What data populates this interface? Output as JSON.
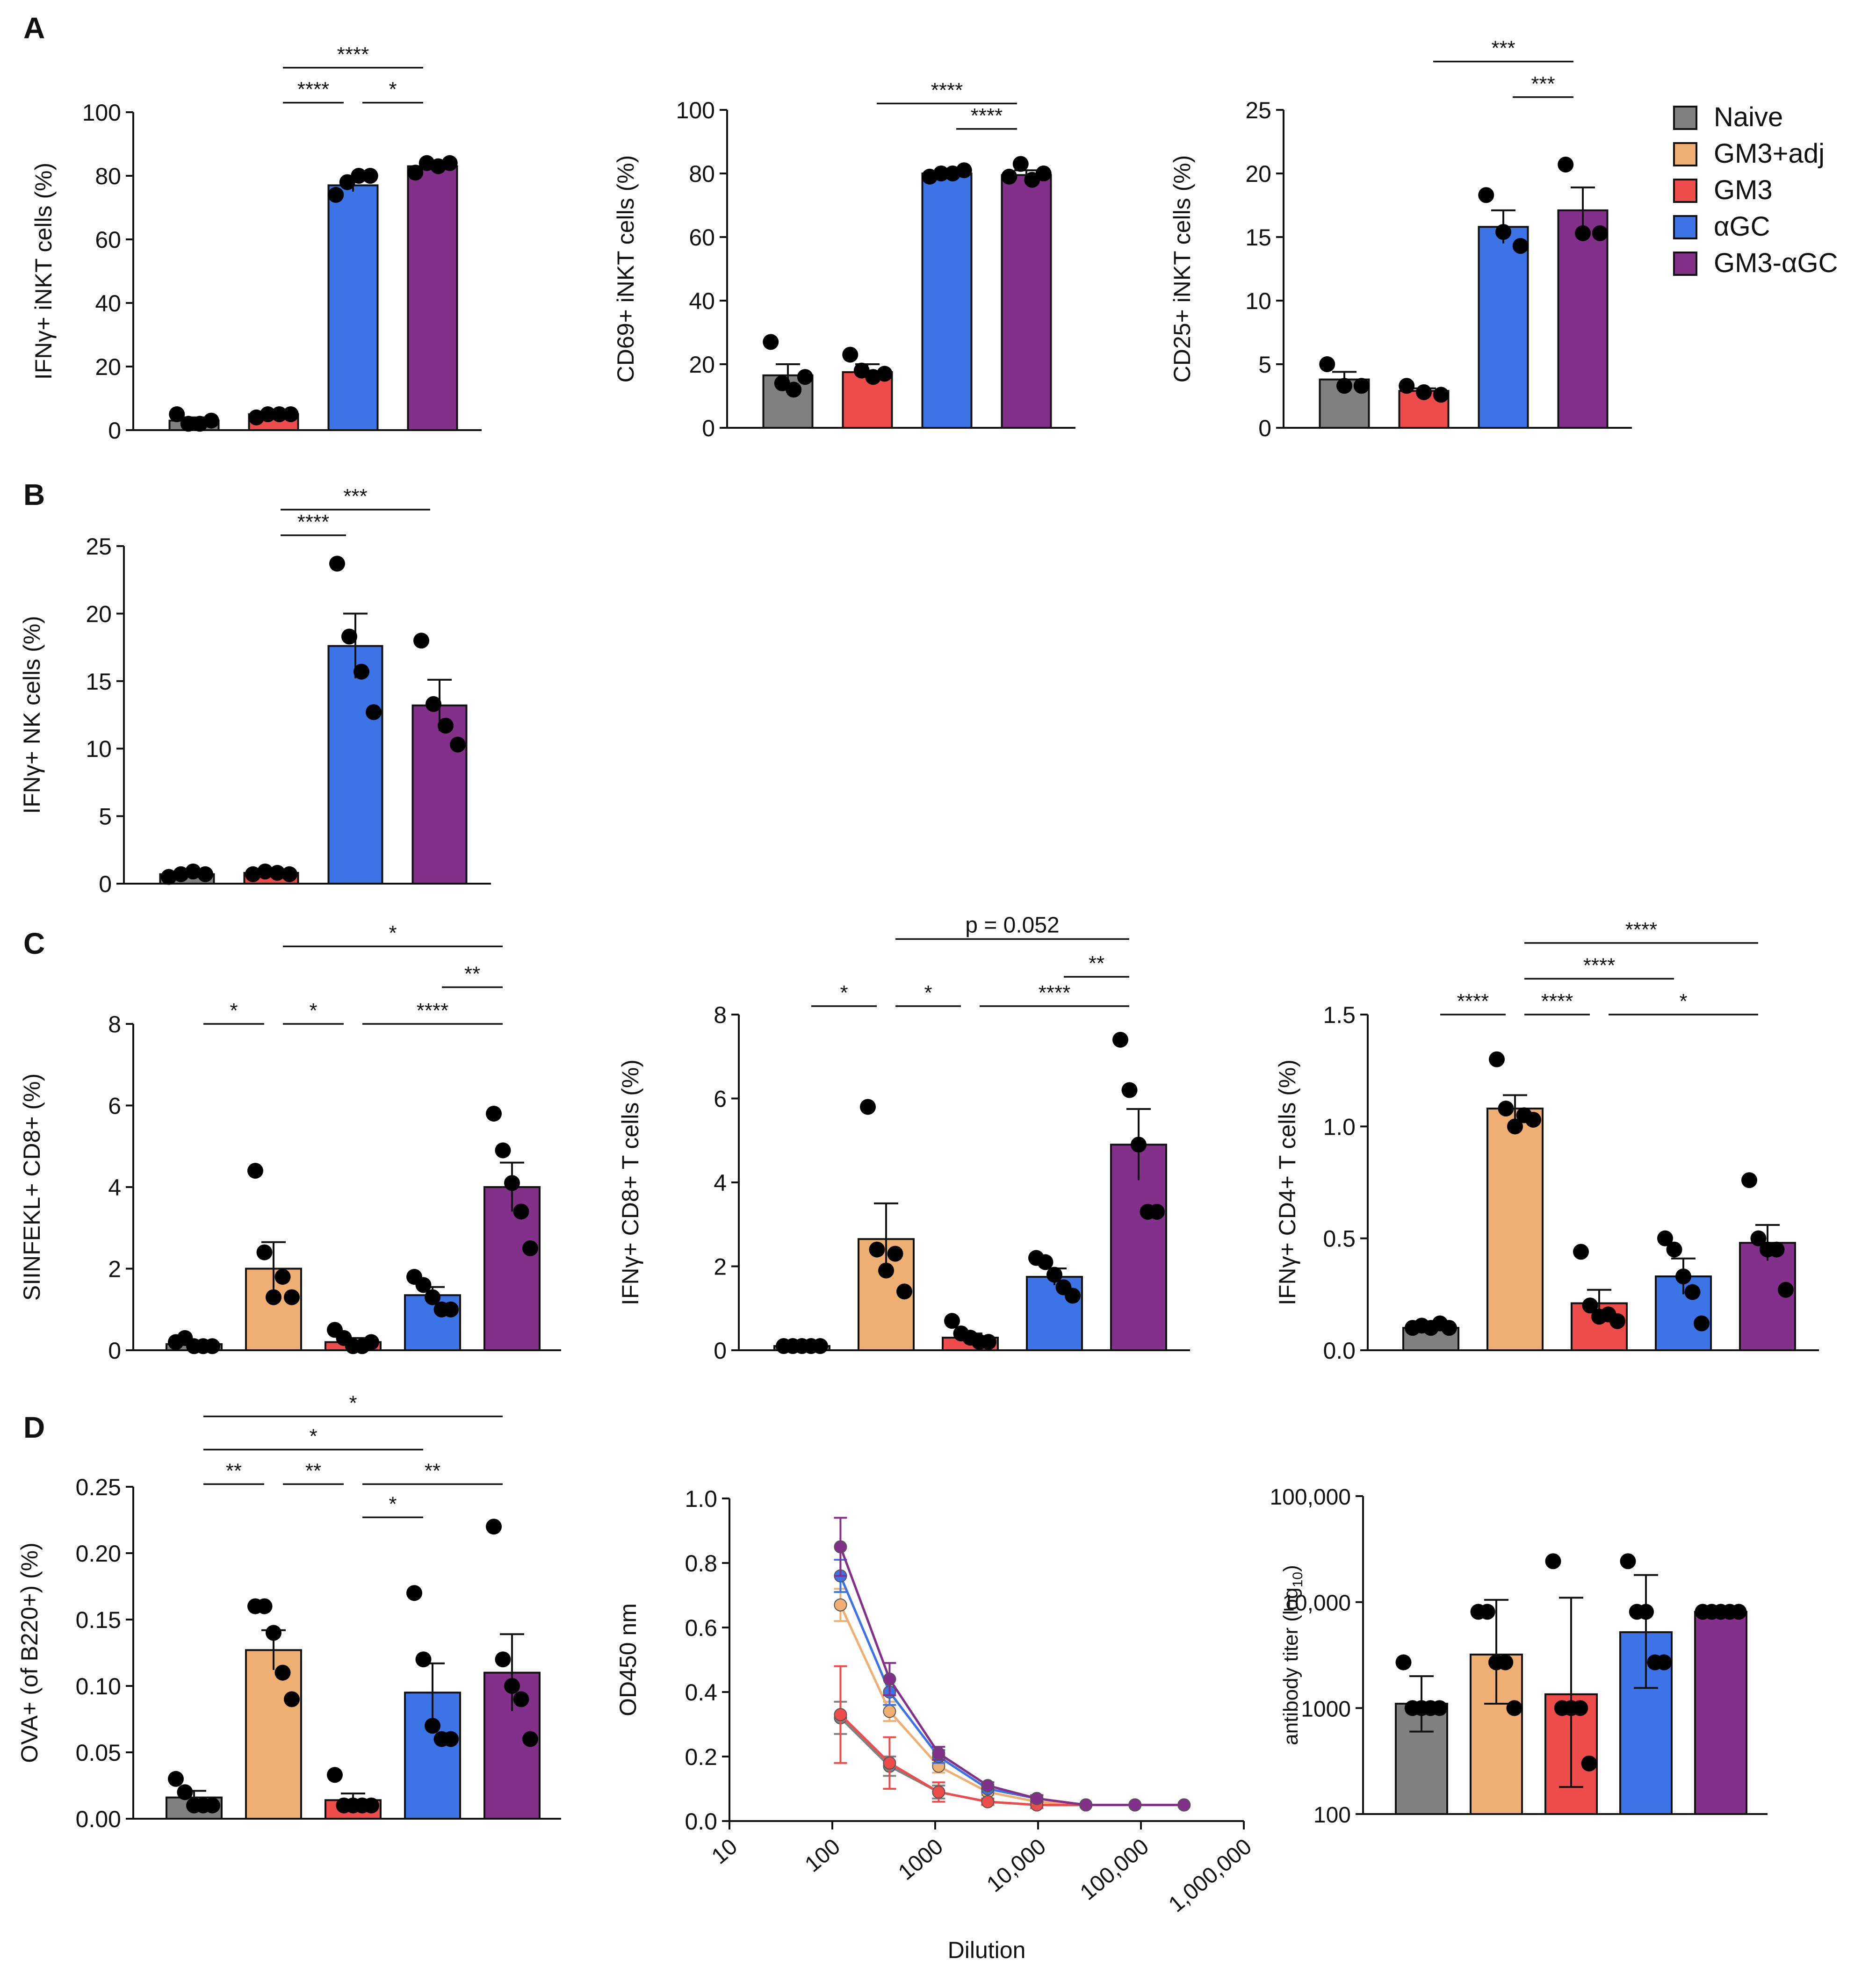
{
  "figure": {
    "panel_labels": [
      "A",
      "B",
      "C",
      "D"
    ],
    "colors": {
      "Naive": "#808080",
      "GM3+adj": "#EFAF72",
      "GM3": "#EE4B4B",
      "aGC": "#3C73E6",
      "GM3-aGC": "#83308A"
    },
    "legend": {
      "position": "top-right",
      "entries": [
        {
          "label": "Naive",
          "key": "Naive"
        },
        {
          "label": "GM3+adj",
          "key": "GM3+adj"
        },
        {
          "label": "GM3",
          "key": "GM3"
        },
        {
          "label": "αGC",
          "key": "aGC"
        },
        {
          "label": "GM3-αGC",
          "key": "GM3-aGC"
        }
      ]
    }
  },
  "chart_data": [
    {
      "id": "A1",
      "type": "bar",
      "panel": "A",
      "ylabel": "IFNγ+ iNKT cells (%)",
      "ylim": [
        0,
        100
      ],
      "yticks": [
        0,
        20,
        40,
        60,
        80,
        100
      ],
      "groups": [
        "Naive",
        "GM3",
        "aGC",
        "GM3-aGC"
      ],
      "values": [
        3,
        5,
        77,
        83
      ],
      "sem": [
        1,
        0.4,
        2,
        1.3
      ],
      "points": [
        [
          5,
          2,
          2,
          3
        ],
        [
          4,
          5,
          5,
          5
        ],
        [
          74,
          78,
          80,
          80
        ],
        [
          81,
          84,
          83,
          84
        ]
      ],
      "significance": [
        {
          "from": 1,
          "to": 2,
          "label": "****",
          "y": 103
        },
        {
          "from": 2,
          "to": 3,
          "label": "*",
          "y": 103
        },
        {
          "from": 1,
          "to": 3,
          "label": "****",
          "y": 114
        }
      ]
    },
    {
      "id": "A2",
      "type": "bar",
      "panel": "A",
      "ylabel": "CD69+ iNKT cells (%)",
      "ylim": [
        0,
        100
      ],
      "yticks": [
        0,
        20,
        40,
        60,
        80,
        100
      ],
      "groups": [
        "Naive",
        "GM3",
        "aGC",
        "GM3-aGC"
      ],
      "values": [
        16.5,
        17.5,
        80,
        79.5
      ],
      "sem": [
        3.5,
        2.5,
        0.5,
        1.5
      ],
      "points": [
        [
          27,
          14,
          12,
          16
        ],
        [
          23,
          18,
          16,
          17
        ],
        [
          79,
          80,
          80,
          81
        ],
        [
          79,
          83,
          78,
          80
        ]
      ],
      "significance": [
        {
          "from": 2,
          "to": 3,
          "label": "****",
          "y": 94
        },
        {
          "from": 1,
          "to": 3,
          "label": "****",
          "y": 102
        }
      ]
    },
    {
      "id": "A3",
      "type": "bar",
      "panel": "A",
      "ylabel": "CD25+ iNKT cells (%)",
      "ylim": [
        0,
        25
      ],
      "yticks": [
        0,
        5,
        10,
        15,
        20,
        25
      ],
      "groups": [
        "Naive",
        "GM3",
        "aGC",
        "GM3-aGC"
      ],
      "values": [
        3.8,
        2.9,
        15.8,
        17.1
      ],
      "sem": [
        0.6,
        0.2,
        1.3,
        1.8
      ],
      "points": [
        [
          5,
          3.3,
          3.3
        ],
        [
          3.3,
          2.8,
          2.6
        ],
        [
          18.3,
          15.4,
          14.3
        ],
        [
          20.7,
          15.3,
          15.3
        ]
      ],
      "significance": [
        {
          "from": 2,
          "to": 3,
          "label": "***",
          "y": 26
        },
        {
          "from": 1,
          "to": 3,
          "label": "***",
          "y": 28.8
        }
      ]
    },
    {
      "id": "B1",
      "type": "bar",
      "panel": "B",
      "ylabel": "IFNγ+ NK cells (%)",
      "ylim": [
        0,
        25
      ],
      "yticks": [
        0,
        5,
        10,
        15,
        20,
        25
      ],
      "groups": [
        "Naive",
        "GM3",
        "aGC",
        "GM3-aGC"
      ],
      "values": [
        0.7,
        0.8,
        17.6,
        13.2
      ],
      "sem": [
        0.15,
        0.1,
        2.4,
        1.9
      ],
      "points": [
        [
          0.5,
          0.7,
          0.9,
          0.7
        ],
        [
          0.7,
          0.9,
          0.8,
          0.7
        ],
        [
          23.7,
          18.3,
          15.7,
          12.7
        ],
        [
          18,
          13.3,
          11.7,
          10.3
        ]
      ],
      "significance": [
        {
          "from": 1,
          "to": 2,
          "label": "****",
          "y": 25.8
        },
        {
          "from": 1,
          "to": 3,
          "label": "***",
          "y": 27.7
        }
      ]
    },
    {
      "id": "C1",
      "type": "bar",
      "panel": "C",
      "ylabel": "SIINFEKL+ CD8+ (%)",
      "ylim": [
        0,
        8
      ],
      "yticks": [
        0,
        2,
        4,
        6,
        8
      ],
      "groups": [
        "Naive",
        "GM3+adj",
        "GM3",
        "aGC",
        "GM3-aGC"
      ],
      "values": [
        0.15,
        2.0,
        0.2,
        1.35,
        4.0
      ],
      "sem": [
        0.05,
        0.65,
        0.1,
        0.2,
        0.6
      ],
      "points": [
        [
          0.2,
          0.3,
          0.1,
          0.1,
          0.1
        ],
        [
          4.4,
          2.4,
          1.3,
          1.8,
          1.3
        ],
        [
          0.5,
          0.3,
          0.1,
          0.1,
          0.2
        ],
        [
          1.8,
          1.6,
          1.3,
          1.0,
          1.0
        ],
        [
          5.8,
          4.9,
          4.1,
          3.4,
          2.5
        ]
      ],
      "significance": [
        {
          "from": 0,
          "to": 1,
          "label": "*",
          "y": 8.0
        },
        {
          "from": 1,
          "to": 2,
          "label": "*",
          "y": 8.0
        },
        {
          "from": 2,
          "to": 4,
          "label": "****",
          "y": 8.0
        },
        {
          "from": 3,
          "to": 4,
          "label": "**",
          "y": 8.9
        },
        {
          "from": 1,
          "to": 4,
          "label": "*",
          "y": 9.9
        }
      ]
    },
    {
      "id": "C2",
      "type": "bar",
      "panel": "C",
      "ylabel": "IFNγ+ CD8+ T cells (%)",
      "ylim": [
        0,
        8
      ],
      "yticks": [
        0,
        2,
        4,
        6,
        8
      ],
      "groups": [
        "Naive",
        "GM3+adj",
        "GM3",
        "aGC",
        "GM3-aGC"
      ],
      "values": [
        0.1,
        2.65,
        0.3,
        1.75,
        4.9
      ],
      "sem": [
        0.02,
        0.85,
        0.1,
        0.2,
        0.85
      ],
      "points": [
        [
          0.1,
          0.1,
          0.1,
          0.1,
          0.1
        ],
        [
          5.8,
          2.4,
          1.9,
          2.3,
          1.4
        ],
        [
          0.7,
          0.4,
          0.3,
          0.2,
          0.2
        ],
        [
          2.2,
          2.1,
          1.8,
          1.5,
          1.3
        ],
        [
          7.4,
          6.2,
          4.9,
          3.3,
          3.3
        ]
      ],
      "significance": [
        {
          "from": 0,
          "to": 1,
          "label": "*",
          "y": 8.2
        },
        {
          "from": 1,
          "to": 2,
          "label": "*",
          "y": 8.2
        },
        {
          "from": 2,
          "to": 4,
          "label": "****",
          "y": 8.2
        },
        {
          "from": 3,
          "to": 4,
          "label": "**",
          "y": 8.9
        },
        {
          "from": 1,
          "to": 4,
          "label": "p = 0.052",
          "y": 9.8
        }
      ]
    },
    {
      "id": "C3",
      "type": "bar",
      "panel": "C",
      "ylabel": "IFNγ+ CD4+ T cells (%)",
      "ylim": [
        0,
        1.5
      ],
      "yticks": [
        0.0,
        0.5,
        1.0,
        1.5
      ],
      "ytick_labels": [
        "0.0",
        "0.5",
        "1.0",
        "1.5"
      ],
      "groups": [
        "Naive",
        "GM3+adj",
        "GM3",
        "aGC",
        "GM3-aGC"
      ],
      "values": [
        0.1,
        1.08,
        0.21,
        0.33,
        0.48
      ],
      "sem": [
        0.01,
        0.06,
        0.06,
        0.08,
        0.08
      ],
      "points": [
        [
          0.1,
          0.11,
          0.1,
          0.12,
          0.1
        ],
        [
          1.3,
          1.08,
          1.0,
          1.05,
          1.03
        ],
        [
          0.44,
          0.2,
          0.15,
          0.16,
          0.13
        ],
        [
          0.5,
          0.45,
          0.33,
          0.26,
          0.12
        ],
        [
          0.76,
          0.5,
          0.45,
          0.45,
          0.27
        ]
      ],
      "significance": [
        {
          "from": 0,
          "to": 1,
          "label": "****",
          "y": 1.5
        },
        {
          "from": 1,
          "to": 2,
          "label": "****",
          "y": 1.5
        },
        {
          "from": 2,
          "to": 4,
          "label": "*",
          "y": 1.5
        },
        {
          "from": 1,
          "to": 3,
          "label": "****",
          "y": 1.66
        },
        {
          "from": 1,
          "to": 4,
          "label": "****",
          "y": 1.82
        }
      ]
    },
    {
      "id": "D1",
      "type": "bar",
      "panel": "D",
      "ylabel": "OVA+ (of B220+) (%)",
      "ylim": [
        0,
        0.25
      ],
      "yticks": [
        0.0,
        0.05,
        0.1,
        0.15,
        0.2,
        0.25
      ],
      "ytick_labels": [
        "0.00",
        "0.05",
        "0.10",
        "0.15",
        "0.20",
        "0.25"
      ],
      "groups": [
        "Naive",
        "GM3+adj",
        "GM3",
        "aGC",
        "GM3-aGC"
      ],
      "values": [
        0.016,
        0.127,
        0.014,
        0.095,
        0.11
      ],
      "sem": [
        0.005,
        0.015,
        0.005,
        0.022,
        0.029
      ],
      "points": [
        [
          0.03,
          0.02,
          0.01,
          0.01,
          0.01
        ],
        [
          0.16,
          0.16,
          0.14,
          0.11,
          0.09
        ],
        [
          0.033,
          0.01,
          0.01,
          0.01,
          0.01
        ],
        [
          0.17,
          0.12,
          0.07,
          0.06,
          0.06
        ],
        [
          0.22,
          0.12,
          0.1,
          0.09,
          0.06
        ]
      ],
      "significance": [
        {
          "from": 0,
          "to": 1,
          "label": "**",
          "y": 0.252
        },
        {
          "from": 1,
          "to": 2,
          "label": "**",
          "y": 0.252
        },
        {
          "from": 2,
          "to": 4,
          "label": "**",
          "y": 0.252
        },
        {
          "from": 2,
          "to": 3,
          "label": "*",
          "y": 0.227
        },
        {
          "from": 0,
          "to": 3,
          "label": "*",
          "y": 0.278
        },
        {
          "from": 0,
          "to": 4,
          "label": "*",
          "y": 0.303
        }
      ]
    },
    {
      "id": "D2",
      "type": "line",
      "panel": "D",
      "xlabel": "Dilution",
      "ylabel": "OD450 nm",
      "xscale": "log",
      "ylim": [
        0,
        1.0
      ],
      "yticks": [
        0.0,
        0.2,
        0.4,
        0.6,
        0.8,
        1.0
      ],
      "ytick_labels": [
        "0.0",
        "0.2",
        "0.4",
        "0.6",
        "0.8",
        "1.0"
      ],
      "xlim": [
        10,
        1000000
      ],
      "xticks": [
        10,
        100,
        1000,
        10000,
        100000,
        1000000
      ],
      "xtick_labels": [
        "10",
        "100",
        "1000",
        "10,000",
        "100,000",
        "1,000,000"
      ],
      "x": [
        120,
        360,
        1080,
        3240,
        9720,
        29160,
        87480,
        262440
      ],
      "series": [
        {
          "name": "Naive",
          "key": "Naive",
          "values": [
            0.32,
            0.17,
            0.09,
            0.06,
            0.05,
            0.05,
            0.05,
            0.05
          ],
          "err": [
            0.05,
            0.03,
            0.02,
            0.01,
            0.01,
            0,
            0,
            0
          ]
        },
        {
          "name": "GM3+adj",
          "key": "GM3+adj",
          "values": [
            0.67,
            0.34,
            0.17,
            0.09,
            0.06,
            0.05,
            0.05,
            0.05
          ],
          "err": [
            0.05,
            0.03,
            0.02,
            0.01,
            0.01,
            0,
            0,
            0
          ]
        },
        {
          "name": "GM3",
          "key": "GM3",
          "values": [
            0.33,
            0.18,
            0.09,
            0.06,
            0.05,
            0.05,
            0.05,
            0.05
          ],
          "err": [
            0.15,
            0.08,
            0.03,
            0.01,
            0.01,
            0,
            0,
            0
          ]
        },
        {
          "name": "αGC",
          "key": "aGC",
          "values": [
            0.76,
            0.4,
            0.2,
            0.1,
            0.07,
            0.05,
            0.05,
            0.05
          ],
          "err": [
            0.05,
            0.04,
            0.02,
            0.01,
            0.01,
            0,
            0,
            0
          ]
        },
        {
          "name": "GM3-αGC",
          "key": "GM3-aGC",
          "values": [
            0.85,
            0.44,
            0.21,
            0.11,
            0.07,
            0.05,
            0.05,
            0.05
          ],
          "err": [
            0.09,
            0.05,
            0.02,
            0.01,
            0.01,
            0,
            0,
            0
          ]
        }
      ]
    },
    {
      "id": "D3",
      "type": "bar",
      "panel": "D",
      "ylabel": "antibody titer (log",
      "ylabel_subscript": "10",
      "ylabel_close": ")",
      "yscale": "log",
      "ylim": [
        100,
        100000
      ],
      "yticks": [
        100,
        1000,
        10000,
        100000
      ],
      "ytick_labels": [
        "100",
        "1000",
        "10,000",
        "100,000"
      ],
      "groups": [
        "Naive",
        "GM3+adj",
        "GM3",
        "aGC",
        "GM3-aGC"
      ],
      "values": [
        1100,
        3200,
        1350,
        5200,
        8100
      ],
      "err_low": [
        600,
        1100,
        180,
        1550,
        8100
      ],
      "err_high": [
        2000,
        10500,
        11000,
        18000,
        8100
      ],
      "points": [
        [
          2700,
          1000,
          1000,
          1000,
          1000
        ],
        [
          8100,
          8100,
          2700,
          2700,
          1000
        ],
        [
          24300,
          1000,
          1000,
          1000,
          300
        ],
        [
          24300,
          8100,
          8100,
          2700,
          2700
        ],
        [
          8100,
          8100,
          8100,
          8100,
          8100
        ]
      ],
      "significance": []
    }
  ]
}
